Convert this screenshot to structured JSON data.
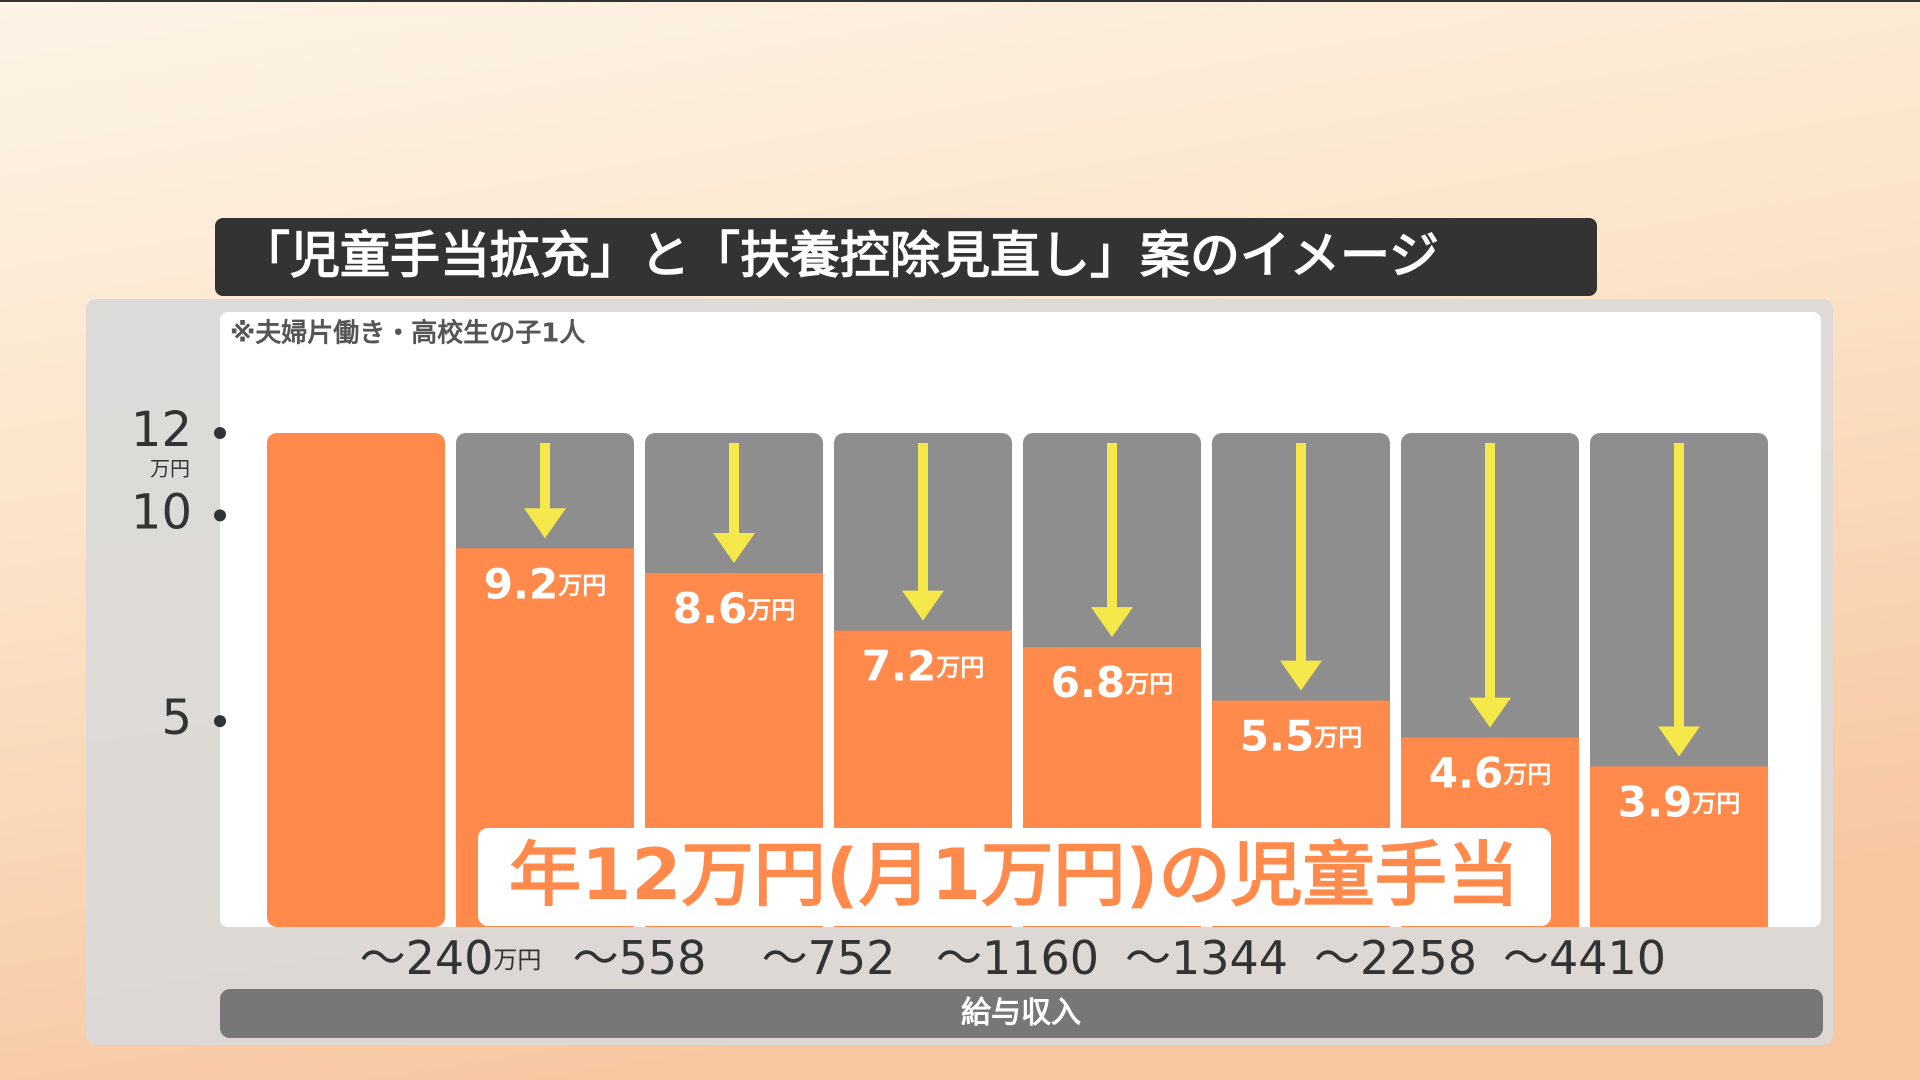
{
  "chart_data": {
    "type": "bar",
    "title": "「児童手当拡充」と「扶養控除見直し」案のイメージ",
    "note": "※夫婦片働き・高校生の子1人",
    "annotation": "年12万円(月1万円)の児童手当",
    "xlabel": "給与収入",
    "unit": "万円",
    "boundary_labels": [
      "～240",
      "～558",
      "～752",
      "～1160",
      "～1344",
      "～2258",
      "～4410"
    ],
    "values": [
      12,
      9.2,
      8.6,
      7.2,
      6.8,
      5.5,
      4.6,
      3.9
    ],
    "color": "#ff8a4c",
    "background_color": "#8e8e8e",
    "arrow_color": "#f4e84a",
    "ylim": [
      0,
      12
    ],
    "yticks": [
      5,
      10,
      12
    ]
  }
}
